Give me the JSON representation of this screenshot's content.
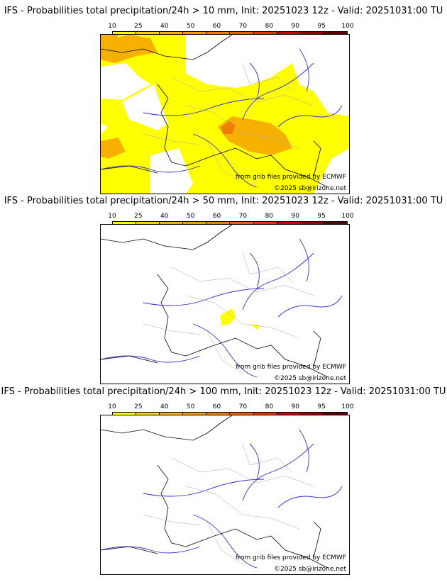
{
  "legend": {
    "ticks": [
      "10",
      "25",
      "40",
      "50",
      "60",
      "70",
      "80",
      "90",
      "95",
      "100"
    ],
    "colors": [
      "#ffff00",
      "#ffd400",
      "#f5b000",
      "#f29a00",
      "#ee7f00",
      "#ec5e00",
      "#e63200",
      "#c80000",
      "#9a0000",
      "#5a0000"
    ]
  },
  "panels": [
    {
      "title": "IFS - Probabilities total precipitation/24h > 10 mm, Init: 20251023 12z - Valid: 20251031:00 TU",
      "credit_source": "from grib files provided by ECMWF",
      "credit_copyright": "©2025 sb@irizone.net"
    },
    {
      "title": "IFS - Probabilities total precipitation/24h > 50 mm, Init: 20251023 12z - Valid: 20251031:00 TU",
      "credit_source": "from grib files provided by ECMWF",
      "credit_copyright": "©2025 sb@irizone.net"
    },
    {
      "title": "IFS - Probabilities total precipitation/24h > 100 mm, Init: 20251023 12z - Valid: 20251031:00 TU",
      "credit_source": "from grib files provided by ECMWF",
      "credit_copyright": "©2025 sb@irizone.net"
    }
  ]
}
